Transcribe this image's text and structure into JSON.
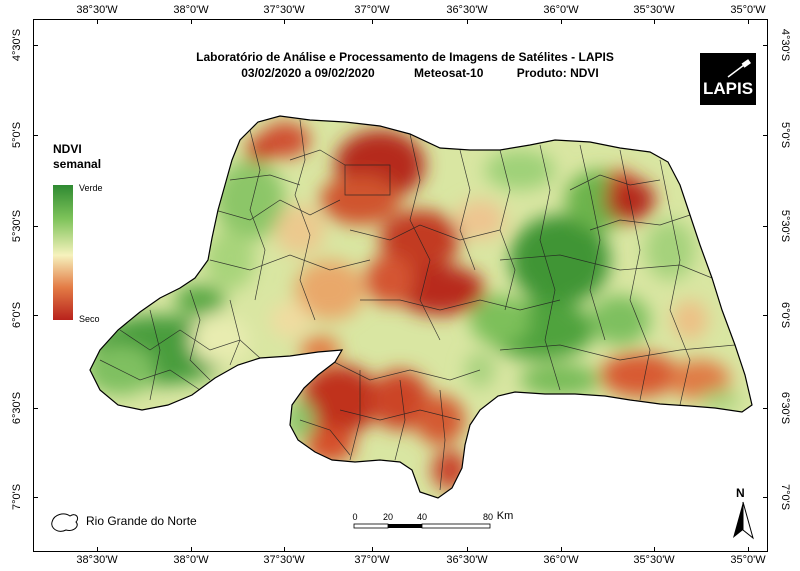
{
  "title": {
    "line1": "Laboratório de Análise e Processamento de Imagens de Satélites - LAPIS",
    "dates": "03/02/2020  a 09/02/2020",
    "satellite": "Meteosat-10",
    "product": "Produto: NDVI"
  },
  "logo_text": "LAPIS",
  "legend": {
    "title_line1": "NDVI",
    "title_line2": "semanal",
    "high_label": "Verde",
    "low_label": "Seco",
    "colors": {
      "high": "#2f8a32",
      "mid": "#f6f2bd",
      "low": "#b8221c"
    }
  },
  "lon_ticks": [
    "38°30'W",
    "38°0'W",
    "37°30'W",
    "37°0'W",
    "36°30'W",
    "36°0'W",
    "35°30'W",
    "35°0'W"
  ],
  "lat_ticks": [
    "4°30'S",
    "5°0'S",
    "5°30'S",
    "6°0'S",
    "6°30'S",
    "7°0'S"
  ],
  "scale": {
    "labels": [
      "0",
      "20",
      "40",
      "80"
    ],
    "unit": "Km"
  },
  "region_label": "Rio Grande do Norte",
  "north_label": "N"
}
